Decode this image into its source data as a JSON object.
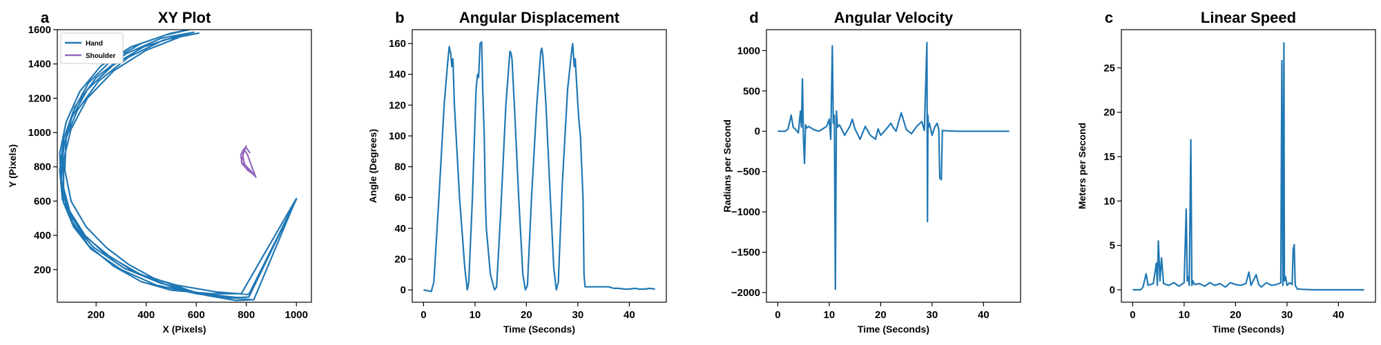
{
  "chart_data": [
    {
      "panel": "a",
      "type": "line",
      "title": "XY Plot",
      "xlabel": "X (Pixels)",
      "ylabel": "Y (Pixels)",
      "xlim": [
        45,
        1060
      ],
      "ylim": [
        10,
        1600
      ],
      "xticks": [
        200,
        400,
        600,
        800,
        1000
      ],
      "yticks": [
        200,
        400,
        600,
        800,
        1000,
        1200,
        1400,
        1600
      ],
      "legend": "top-left",
      "series": [
        {
          "name": "Hand",
          "color": "#1f77b4",
          "x": [
            820,
            710,
            590,
            430,
            330,
            240,
            160,
            100,
            75,
            80,
            110,
            170,
            260,
            380,
            500,
            570,
            480,
            340,
            220,
            135,
            80,
            55,
            60,
            85,
            140,
            230,
            350,
            500,
            640,
            760,
            830,
            1000,
            780,
            660,
            500,
            380,
            270,
            170,
            105,
            70,
            70,
            100,
            165,
            270,
            400,
            540,
            610,
            470,
            330,
            210,
            125,
            75,
            58,
            70,
            110,
            180,
            300,
            440,
            600,
            730,
            810,
            1000,
            810,
            680,
            520,
            380,
            260,
            160,
            95,
            62,
            68,
            100,
            165,
            265,
            390,
            520,
            590,
            460,
            320,
            200,
            115,
            70,
            55,
            65,
            110,
            190,
            310,
            460,
            620,
            780
          ],
          "y": [
            25,
            40,
            70,
            150,
            230,
            330,
            450,
            600,
            780,
            960,
            1130,
            1290,
            1420,
            1520,
            1580,
            1600,
            1570,
            1500,
            1390,
            1240,
            1060,
            880,
            700,
            550,
            420,
            300,
            190,
            100,
            50,
            20,
            25,
            615,
            60,
            60,
            80,
            130,
            220,
            340,
            480,
            650,
            840,
            1020,
            1200,
            1360,
            1480,
            1560,
            1580,
            1540,
            1440,
            1300,
            1130,
            950,
            770,
            590,
            450,
            320,
            200,
            110,
            60,
            35,
            40,
            610,
            55,
            70,
            110,
            170,
            270,
            390,
            540,
            720,
            900,
            1080,
            1250,
            1390,
            1500,
            1560,
            1585,
            1550,
            1460,
            1320,
            1150,
            960,
            780,
            610,
            460,
            330,
            210,
            120,
            60,
            35
          ]
        },
        {
          "name": "Shoulder",
          "color": "#9467bd",
          "x": [
            800,
            790,
            785,
            795,
            815,
            835,
            820,
            800,
            782,
            778,
            790,
            805,
            822,
            838,
            825,
            805,
            790,
            786,
            798,
            815
          ],
          "y": [
            925,
            890,
            850,
            810,
            780,
            750,
            765,
            790,
            820,
            870,
            905,
            870,
            800,
            740,
            760,
            780,
            820,
            875,
            915,
            880
          ]
        }
      ]
    },
    {
      "panel": "b",
      "type": "line",
      "title": "Angular Displacement",
      "xlabel": "Time (Seconds)",
      "ylabel": "Angle (Degrees)",
      "xlim": [
        -2.2,
        47.2
      ],
      "ylim": [
        -8,
        169
      ],
      "xticks": [
        0,
        10,
        20,
        30,
        40
      ],
      "yticks": [
        0,
        20,
        40,
        60,
        80,
        100,
        120,
        140,
        160
      ],
      "series": [
        {
          "color": "#1f77b4",
          "x": [
            0,
            1.5,
            2.0,
            3.0,
            4.0,
            4.7,
            5.0,
            5.3,
            5.5,
            5.7,
            6.0,
            7.0,
            8.0,
            8.5,
            8.8,
            9.5,
            10.2,
            10.5,
            10.7,
            11.0,
            11.3,
            11.5,
            11.8,
            12.0,
            12.2,
            13.0,
            13.8,
            14.2,
            14.5,
            15.0,
            16.0,
            16.8,
            17.0,
            17.2,
            17.8,
            18.5,
            19.3,
            19.8,
            20.2,
            20.5,
            21.0,
            22.0,
            22.8,
            23.0,
            23.2,
            23.8,
            24.5,
            25.3,
            25.8,
            26.2,
            26.5,
            27.0,
            28.0,
            28.8,
            29.0,
            29.3,
            29.5,
            29.7,
            30.0,
            30.2,
            30.5,
            31.0,
            31.2,
            31.4,
            32.0,
            33.0,
            34.0,
            35.0,
            36.0,
            37.0,
            38.0,
            39.0,
            40.0,
            41.0,
            42.0,
            43.0,
            44.0,
            45.0
          ],
          "y": [
            0,
            -1,
            5,
            60,
            120,
            148,
            158,
            153,
            145,
            150,
            120,
            60,
            15,
            0,
            5,
            60,
            130,
            140,
            138,
            160,
            161,
            130,
            100,
            60,
            40,
            10,
            0,
            2,
            20,
            50,
            120,
            155,
            154,
            150,
            110,
            60,
            10,
            0,
            3,
            25,
            60,
            120,
            155,
            157,
            152,
            120,
            70,
            15,
            0,
            5,
            30,
            70,
            130,
            155,
            160,
            145,
            150,
            138,
            120,
            110,
            100,
            60,
            10,
            2,
            2,
            2,
            2,
            2,
            2,
            1,
            1,
            0.5,
            0.5,
            1,
            0.5,
            0.5,
            1,
            0.5
          ]
        }
      ]
    },
    {
      "panel": "d",
      "type": "line",
      "title": "Angular Velocity",
      "xlabel": "Time (Seconds)",
      "ylabel": "Radians per Second",
      "xlim": [
        -2.2,
        47.2
      ],
      "ylim": [
        -2120,
        1260
      ],
      "xticks": [
        0,
        10,
        20,
        30,
        40
      ],
      "yticks": [
        1000,
        500,
        0,
        -500,
        -1000,
        -1500,
        -2000
      ],
      "series": [
        {
          "color": "#1f77b4",
          "x": [
            0,
            1.5,
            2.0,
            2.6,
            3.0,
            3.5,
            4.0,
            4.4,
            4.6,
            4.8,
            5.0,
            5.2,
            5.4,
            5.6,
            6.0,
            7.0,
            8.0,
            9.0,
            9.5,
            10.0,
            10.3,
            10.6,
            10.8,
            11.0,
            11.2,
            11.4,
            11.6,
            12.0,
            13.0,
            14.0,
            14.5,
            15.0,
            16.0,
            17.0,
            18.0,
            19.0,
            19.5,
            20.0,
            21.0,
            22.0,
            22.5,
            23.0,
            24.0,
            25.0,
            26.0,
            27.0,
            28.0,
            28.5,
            29.0,
            29.1,
            29.2,
            29.3,
            29.5,
            30.0,
            30.5,
            31.0,
            31.3,
            31.5,
            31.8,
            32.0,
            33.0,
            35.0,
            40.0,
            45.0
          ],
          "y": [
            0,
            0,
            30,
            200,
            50,
            20,
            -20,
            250,
            50,
            650,
            -80,
            -400,
            80,
            40,
            60,
            20,
            0,
            40,
            60,
            150,
            -100,
            1060,
            100,
            200,
            -1960,
            250,
            50,
            80,
            -50,
            60,
            150,
            30,
            -100,
            60,
            -50,
            -100,
            30,
            -50,
            20,
            100,
            40,
            0,
            230,
            20,
            -30,
            60,
            120,
            10,
            1100,
            -1120,
            200,
            50,
            100,
            -50,
            50,
            100,
            20,
            -580,
            -600,
            10,
            5,
            0,
            0,
            0
          ]
        }
      ]
    },
    {
      "panel": "c",
      "type": "line",
      "title": "Linear Speed",
      "xlabel": "Time (Seconds)",
      "ylabel": "Meters per Second",
      "xlim": [
        -2.2,
        47.2
      ],
      "ylim": [
        -1.4,
        29.3
      ],
      "xticks": [
        0,
        10,
        20,
        30,
        40
      ],
      "yticks": [
        0,
        5,
        10,
        15,
        20,
        25
      ],
      "series": [
        {
          "color": "#1f77b4",
          "x": [
            0,
            1.5,
            2.0,
            2.6,
            3.0,
            4.0,
            4.6,
            4.8,
            5.0,
            5.3,
            5.6,
            6.0,
            7.0,
            8.0,
            9.0,
            10.0,
            10.4,
            10.6,
            10.8,
            11.0,
            11.3,
            11.5,
            11.7,
            12.0,
            13.0,
            14.0,
            15.0,
            16.0,
            17.0,
            18.0,
            19.0,
            20.0,
            21.0,
            22.0,
            22.6,
            23.0,
            24.0,
            24.5,
            25.0,
            26.0,
            27.0,
            28.0,
            28.8,
            29.0,
            29.2,
            29.4,
            29.5,
            29.7,
            30.0,
            30.5,
            31.0,
            31.2,
            31.4,
            31.6,
            32.0,
            33.0,
            35.0,
            40.0,
            45.0
          ],
          "y": [
            0,
            0,
            0.3,
            1.8,
            0.5,
            0.7,
            3.0,
            0.5,
            5.5,
            1.0,
            3.6,
            0.7,
            0.5,
            0.8,
            0.4,
            0.8,
            9.1,
            1.0,
            1.5,
            0.5,
            16.9,
            0.5,
            1.0,
            0.6,
            0.7,
            0.4,
            0.8,
            0.5,
            0.7,
            0.3,
            0.8,
            0.6,
            0.5,
            0.7,
            2.0,
            0.5,
            1.7,
            0.6,
            0.3,
            0.8,
            0.5,
            0.6,
            0.8,
            25.8,
            0.5,
            27.8,
            1.0,
            1.5,
            0.5,
            0.8,
            0.6,
            4.5,
            5.1,
            0.5,
            0.1,
            0.05,
            0,
            0,
            0
          ]
        }
      ]
    }
  ]
}
